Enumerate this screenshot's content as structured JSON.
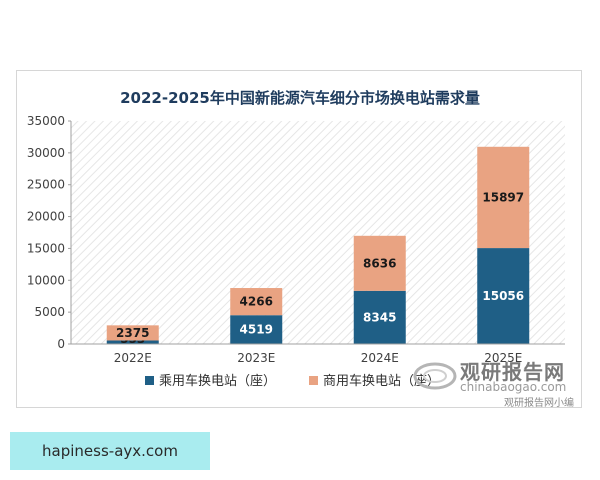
{
  "watermark": {
    "name_cn": "观研报告网",
    "site": "chinabaogao.com",
    "extra": "观研报告网小编"
  },
  "banner": {
    "text": "hapiness-ayx.com"
  },
  "chart_data": {
    "type": "bar",
    "stacked": true,
    "title": "2022-2025年中国新能源汽车细分市场换电站需求量",
    "categories": [
      "2022E",
      "2023E",
      "2024E",
      "2025E"
    ],
    "series": [
      {
        "name": "乘用车换电站（座）",
        "values": [
          553,
          4519,
          8345,
          15056
        ],
        "color": "#1f5f86",
        "label_color": "#ffffff"
      },
      {
        "name": "商用车换电站（座）",
        "values": [
          2375,
          4266,
          8636,
          15897
        ],
        "color": "#e9a382",
        "label_color": "#1a1a1a"
      }
    ],
    "ylim": [
      0,
      35000
    ],
    "yticks": [
      0,
      5000,
      10000,
      15000,
      20000,
      25000,
      30000,
      35000
    ],
    "grid": false,
    "legend_position": "bottom"
  }
}
